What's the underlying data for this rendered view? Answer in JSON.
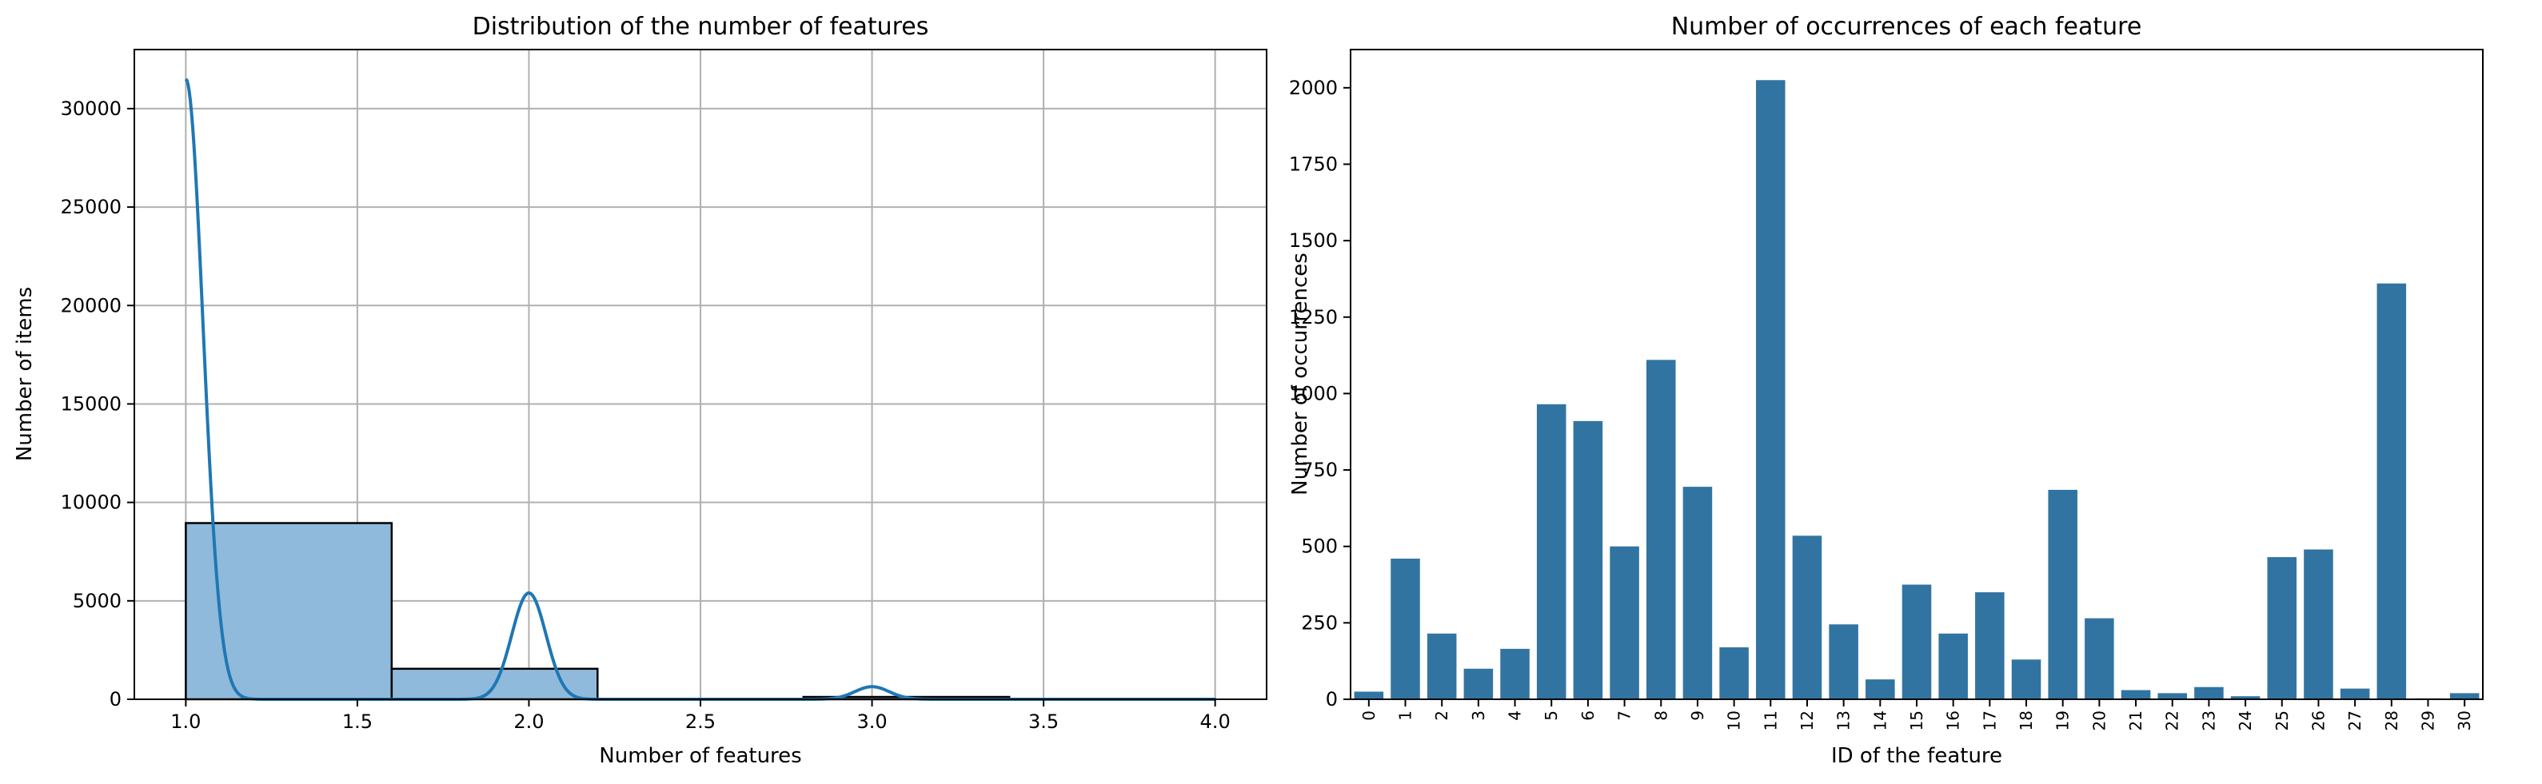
{
  "colors": {
    "hist_fill": "#8fbadb",
    "hist_edge": "#000000",
    "kde_line": "#1f77b4",
    "bar_fill": "#3274a1",
    "grid": "#b0b0b0"
  },
  "chart_data": [
    {
      "type": "histogram",
      "title": "Distribution of the number of features",
      "xlabel": "Number of features",
      "ylabel": "Number of items",
      "xlim": [
        0.85,
        4.15
      ],
      "ylim": [
        0,
        33000
      ],
      "xticks": [
        1.0,
        1.5,
        2.0,
        2.5,
        3.0,
        3.5,
        4.0
      ],
      "xtick_labels": [
        "1.0",
        "1.5",
        "2.0",
        "2.5",
        "3.0",
        "3.5",
        "4.0"
      ],
      "yticks": [
        0,
        5000,
        10000,
        15000,
        20000,
        25000,
        30000
      ],
      "ytick_labels": [
        "0",
        "5000",
        "10000",
        "15000",
        "20000",
        "25000",
        "30000"
      ],
      "grid": true,
      "bins": [
        {
          "x0": 1.0,
          "x1": 1.6,
          "count": 8950
        },
        {
          "x0": 1.6,
          "x1": 2.2,
          "count": 1550
        },
        {
          "x0": 2.2,
          "x1": 2.8,
          "count": 0
        },
        {
          "x0": 2.8,
          "x1": 3.4,
          "count": 120
        },
        {
          "x0": 3.4,
          "x1": 4.0,
          "count": 5
        }
      ],
      "kde": {
        "components": [
          {
            "mean": 1.0,
            "sd": 0.05,
            "amplitude": 31500
          },
          {
            "mean": 2.0,
            "sd": 0.05,
            "amplitude": 5400
          },
          {
            "mean": 3.0,
            "sd": 0.05,
            "amplitude": 640
          }
        ],
        "x_range": [
          1.0,
          4.0
        ]
      }
    },
    {
      "type": "bar",
      "title": "Number of occurrences of each feature",
      "xlabel": "ID of the feature",
      "ylabel": "Number of occurrences",
      "ylim": [
        0,
        2125
      ],
      "yticks": [
        0,
        250,
        500,
        750,
        1000,
        1250,
        1500,
        1750,
        2000
      ],
      "ytick_labels": [
        "0",
        "250",
        "500",
        "750",
        "1000",
        "1250",
        "1500",
        "1750",
        "2000"
      ],
      "categories": [
        "0",
        "1",
        "2",
        "3",
        "4",
        "5",
        "6",
        "7",
        "8",
        "9",
        "10",
        "11",
        "12",
        "13",
        "14",
        "15",
        "16",
        "17",
        "18",
        "19",
        "20",
        "21",
        "22",
        "23",
        "24",
        "25",
        "26",
        "27",
        "28",
        "29",
        "30"
      ],
      "values": [
        25,
        460,
        215,
        100,
        165,
        965,
        910,
        500,
        1110,
        695,
        170,
        2025,
        535,
        245,
        65,
        375,
        215,
        350,
        130,
        685,
        265,
        30,
        20,
        40,
        10,
        465,
        490,
        35,
        1360,
        3,
        20
      ],
      "grid": false
    }
  ]
}
